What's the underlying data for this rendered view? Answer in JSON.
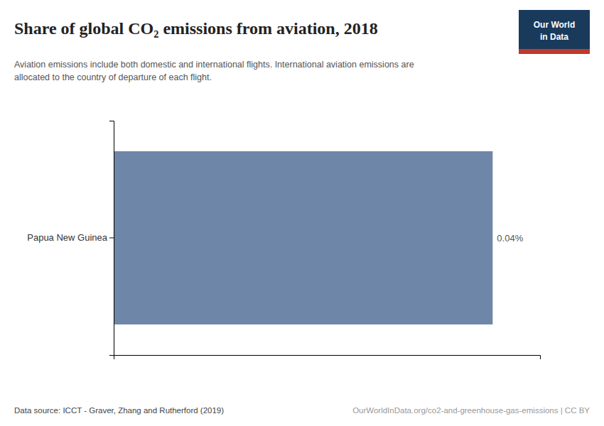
{
  "chart_data": {
    "type": "bar",
    "orientation": "horizontal",
    "title": "Share of global CO₂ emissions from aviation, 2018",
    "subtitle": "Aviation emissions include both domestic and international flights. International aviation emissions are\nallocated to the country of departure of each flight.",
    "categories": [
      "Papua New Guinea"
    ],
    "values": [
      0.04
    ],
    "value_labels": [
      "0.04%"
    ],
    "data_labels": true,
    "color": "#6e86a8",
    "xlim": [
      0,
      0.045
    ],
    "xticks": [],
    "tick_labels": "y",
    "grid": false,
    "annotations": [
      "Data source: ICCT - Graver, Zhang and Rutherford (2019)",
      "OurWorldInData.org/co2-and-greenhouse-gas-emissions | CC BY",
      "Our World",
      "in Data"
    ]
  }
}
